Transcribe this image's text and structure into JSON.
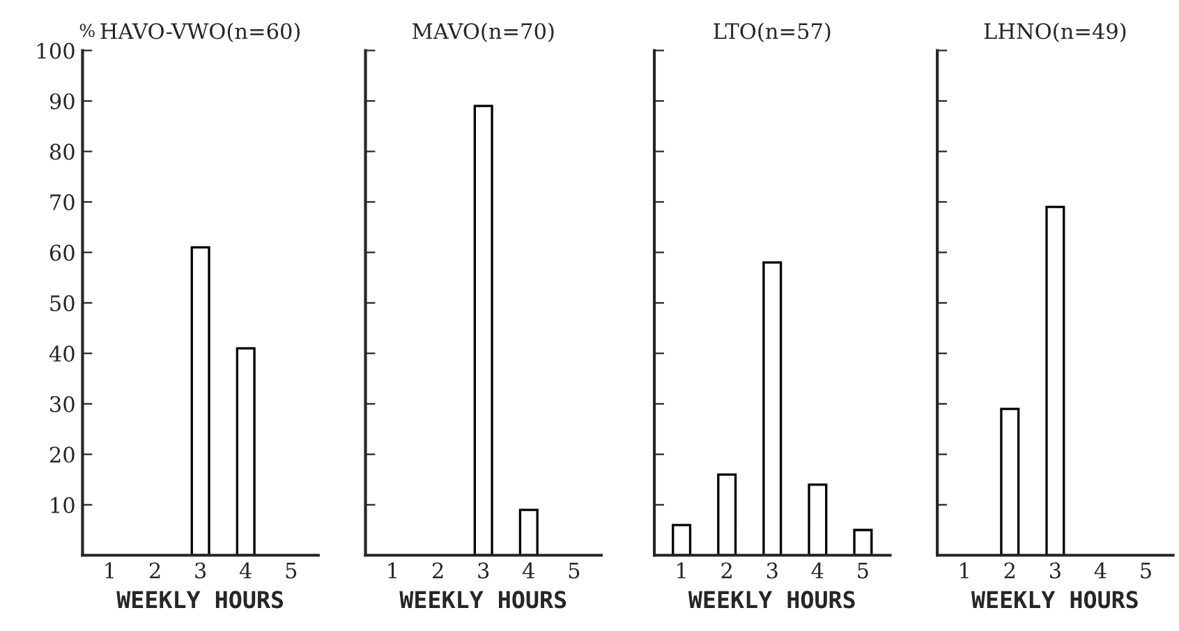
{
  "chart_data": [
    {
      "type": "bar",
      "title": "HAVO-VWO(n=60)",
      "xlabel": "WEEKLY HOURS",
      "ylabel": "%",
      "categories": [
        "1",
        "2",
        "3",
        "4",
        "5"
      ],
      "values": [
        0,
        0,
        61,
        41,
        0
      ],
      "color": "#ffffff",
      "ylim": [
        0,
        100
      ],
      "yticks": [
        10,
        20,
        30,
        40,
        50,
        60,
        70,
        80,
        90,
        100
      ],
      "grid": false
    },
    {
      "type": "bar",
      "title": "MAVO(n=70)",
      "xlabel": "WEEKLY HOURS",
      "categories": [
        "1",
        "2",
        "3",
        "4",
        "5"
      ],
      "values": [
        0,
        0,
        89,
        9,
        0
      ],
      "color": "#ffffff",
      "ylim": [
        0,
        100
      ],
      "yticks": [
        10,
        20,
        30,
        40,
        50,
        60,
        70,
        80,
        90,
        100
      ],
      "tick_labels": "x",
      "grid": false
    },
    {
      "type": "bar",
      "title": "LTO(n=57)",
      "xlabel": "WEEKLY HOURS",
      "categories": [
        "1",
        "2",
        "3",
        "4",
        "5"
      ],
      "values": [
        6,
        16,
        58,
        14,
        5
      ],
      "color": "#ffffff",
      "ylim": [
        0,
        100
      ],
      "yticks": [
        10,
        20,
        30,
        40,
        50,
        60,
        70,
        80,
        90,
        100
      ],
      "tick_labels": "x",
      "grid": false
    },
    {
      "type": "bar",
      "title": "LHNO(n=49)",
      "xlabel": "WEEKLY HOURS",
      "categories": [
        "1",
        "2",
        "3",
        "4",
        "5"
      ],
      "values": [
        0,
        29,
        69,
        0,
        0
      ],
      "color": "#ffffff",
      "ylim": [
        0,
        100
      ],
      "yticks": [
        10,
        20,
        30,
        40,
        50,
        60,
        70,
        80,
        90,
        100
      ],
      "tick_labels": "x",
      "grid": false
    }
  ]
}
